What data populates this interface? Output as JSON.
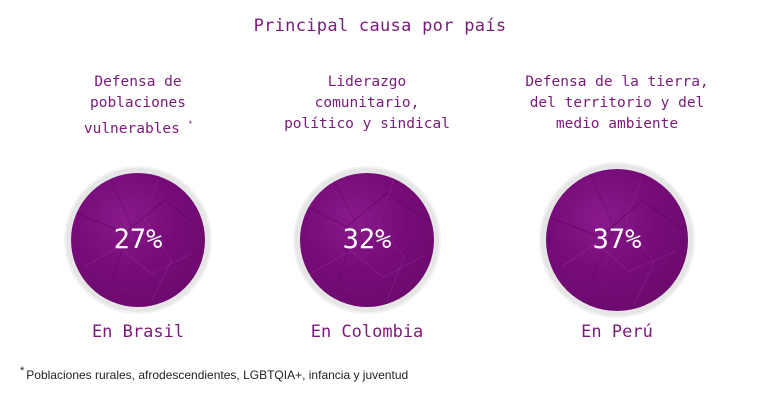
{
  "title": "Principal causa por país",
  "colors": {
    "accent": "#7a1a7a",
    "bubble": "#760b78",
    "percent_text": "#ffffff"
  },
  "columns": [
    {
      "cause_lines": [
        "Defensa de",
        "poblaciones",
        "vulnerables"
      ],
      "asterisk": "*",
      "percent": "27%",
      "country": "En Brasil"
    },
    {
      "cause_lines": [
        "Liderazgo",
        "comunitario,",
        "político y sindical"
      ],
      "percent": "32%",
      "country": "En Colombia"
    },
    {
      "cause_lines": [
        "Defensa de la tierra,",
        "del territorio y del",
        "medio ambiente"
      ],
      "percent": "37%",
      "country": "En Perú"
    }
  ],
  "footnote": {
    "star": "*",
    "text": "Poblaciones rurales, afrodescendientes, LGBTQIA+, infancia y juventud"
  }
}
